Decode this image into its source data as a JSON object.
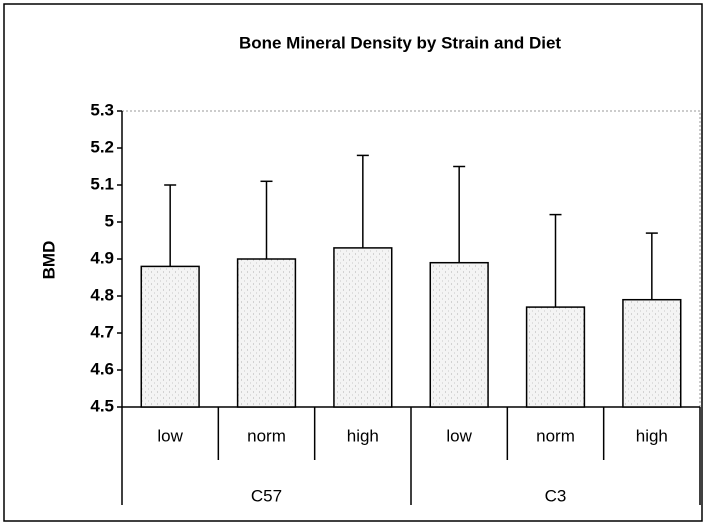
{
  "chart_data": {
    "type": "bar",
    "title": "Bone Mineral Density by Strain and Diet",
    "y_label": "BMD",
    "groups": [
      {
        "name": "C57",
        "categories": [
          "low",
          "norm",
          "high"
        ],
        "values": [
          4.88,
          4.9,
          4.93
        ],
        "errors": [
          0.22,
          0.21,
          0.25
        ]
      },
      {
        "name": "C3",
        "categories": [
          "low",
          "norm",
          "high"
        ],
        "values": [
          4.89,
          4.77,
          4.79
        ],
        "errors": [
          0.26,
          0.25,
          0.18
        ]
      }
    ],
    "color": "#eeeeee",
    "ylim": [
      4.5,
      5.3
    ],
    "yticks": [
      4.5,
      4.6,
      4.7,
      4.8,
      4.9,
      5,
      5.1,
      5.2,
      5.3
    ],
    "grid": false
  }
}
